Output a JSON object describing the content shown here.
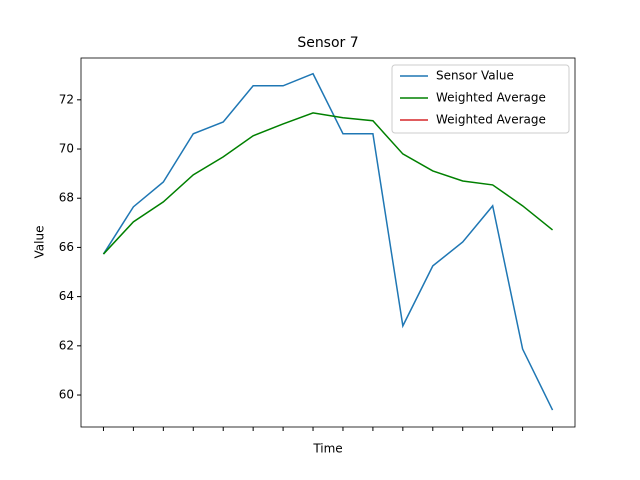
{
  "chart_data": {
    "type": "line",
    "title": "Sensor 7",
    "xlabel": "Time",
    "ylabel": "Value",
    "categories": [
      null,
      null,
      null,
      null,
      null,
      null,
      null,
      null,
      null,
      null,
      null,
      null,
      null,
      null,
      null,
      null
    ],
    "series": [
      {
        "name": "Sensor Value",
        "color": "#1f77b4",
        "values": [
          65.73,
          67.65,
          68.66,
          70.62,
          71.1,
          72.57,
          72.57,
          73.06,
          70.62,
          70.62,
          62.81,
          65.25,
          66.22,
          67.69,
          61.87,
          59.39
        ]
      },
      {
        "name": "Weighted Average",
        "color": "#008000",
        "values": [
          65.73,
          67.04,
          67.85,
          68.95,
          69.68,
          70.54,
          71.02,
          71.47,
          71.27,
          71.15,
          69.8,
          69.11,
          68.7,
          68.54,
          67.69,
          66.71
        ]
      },
      {
        "name": "Weighted Average",
        "color": "#d62728",
        "values": [
          null,
          null,
          null,
          null,
          null,
          null,
          null,
          null,
          null,
          null,
          null,
          null,
          null,
          null,
          null,
          null
        ]
      }
    ],
    "ylim": [
      58.7,
      73.7
    ],
    "yticks": [
      60,
      62,
      64,
      66,
      68,
      70,
      72
    ],
    "legend": "upper right"
  }
}
